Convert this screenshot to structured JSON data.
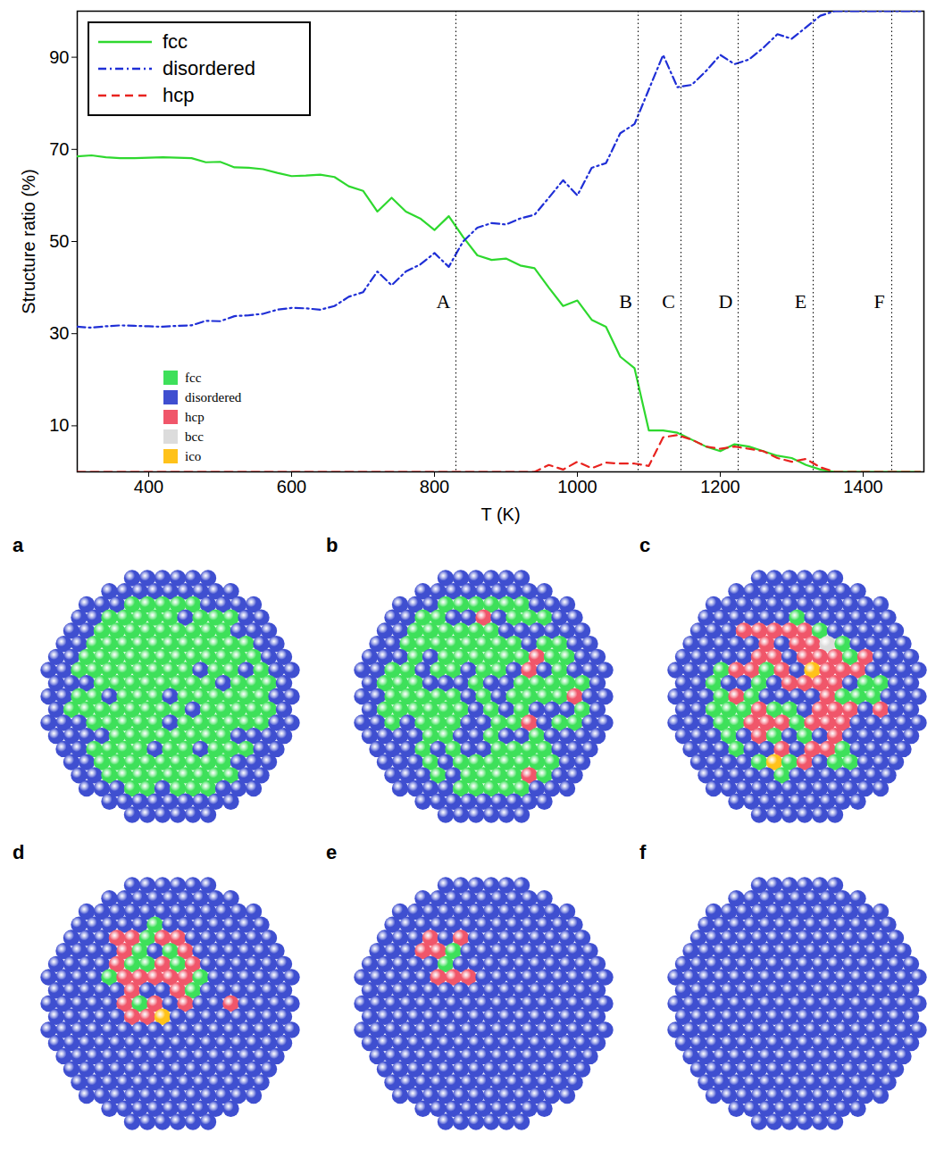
{
  "chart_data": {
    "type": "line",
    "xlabel": "T (K)",
    "ylabel": "Structure ratio (%)",
    "xlim": [
      300,
      1485
    ],
    "ylim": [
      0,
      100
    ],
    "xticks": [
      400,
      600,
      800,
      1000,
      1200,
      1400
    ],
    "yticks": [
      10,
      30,
      50,
      70,
      90
    ],
    "legend": "top-left",
    "x": [
      300,
      320,
      340,
      360,
      380,
      400,
      420,
      440,
      460,
      480,
      500,
      520,
      540,
      560,
      580,
      600,
      620,
      640,
      660,
      680,
      700,
      720,
      740,
      760,
      780,
      800,
      820,
      840,
      860,
      880,
      900,
      920,
      940,
      960,
      980,
      1000,
      1020,
      1040,
      1060,
      1080,
      1100,
      1120,
      1140,
      1160,
      1180,
      1200,
      1220,
      1240,
      1260,
      1280,
      1300,
      1320,
      1340,
      1360,
      1380,
      1400,
      1420,
      1440,
      1460,
      1480
    ],
    "series": [
      {
        "name": "fcc",
        "color": "#2ed82e",
        "line_style": "solid",
        "values": [
          68.5,
          68.7,
          68.3,
          68.1,
          68.1,
          68.2,
          68.3,
          68.2,
          68.1,
          67.2,
          67.3,
          66.1,
          66.0,
          65.7,
          64.9,
          64.2,
          64.3,
          64.5,
          64.0,
          62.0,
          61.0,
          56.5,
          59.5,
          56.5,
          55.0,
          52.5,
          55.5,
          51.0,
          47.0,
          46.0,
          46.3,
          44.8,
          44.2,
          40.0,
          36.0,
          37.2,
          33.0,
          31.5,
          25.0,
          22.5,
          9.0,
          9.0,
          8.5,
          7.0,
          5.5,
          4.5,
          6.0,
          5.5,
          4.5,
          3.5,
          3.0,
          1.5,
          0.5,
          0,
          0,
          0,
          0,
          0,
          0,
          0
        ]
      },
      {
        "name": "disordered",
        "color": "#1f2fd6",
        "line_style": "dashdot",
        "values": [
          31.5,
          31.3,
          31.6,
          31.8,
          31.7,
          31.6,
          31.5,
          31.7,
          31.8,
          32.8,
          32.7,
          33.8,
          34.0,
          34.3,
          35.2,
          35.6,
          35.5,
          35.2,
          36.0,
          38.0,
          39.0,
          43.5,
          40.5,
          43.5,
          45.0,
          47.5,
          44.5,
          50.0,
          53.0,
          54.0,
          53.7,
          55.0,
          55.8,
          59.5,
          63.3,
          60.0,
          66.0,
          67.0,
          73.5,
          75.5,
          83.0,
          90.5,
          83.5,
          84.0,
          87.0,
          90.5,
          88.5,
          89.5,
          92.0,
          95.0,
          94.0,
          96.5,
          99.0,
          100,
          100,
          100,
          100,
          100,
          100,
          100
        ]
      },
      {
        "name": "hcp",
        "color": "#e8231f",
        "line_style": "dashed",
        "values": [
          0,
          0,
          0,
          0,
          0,
          0,
          0,
          0,
          0,
          0,
          0,
          0,
          0,
          0,
          0,
          0,
          0,
          0,
          0,
          0,
          0,
          0,
          0,
          0,
          0,
          0,
          0,
          0,
          0,
          0,
          0,
          0,
          0,
          1.5,
          0.5,
          2.2,
          0.8,
          2.0,
          1.8,
          1.8,
          1.3,
          7.5,
          8.0,
          7.0,
          5.5,
          5.0,
          5.5,
          5.0,
          4.5,
          3.0,
          2.2,
          2.8,
          1.0,
          0,
          0,
          0,
          0,
          0,
          0,
          0
        ]
      }
    ],
    "annotations": [
      {
        "label": "A",
        "x": 830
      },
      {
        "label": "B",
        "x": 1085
      },
      {
        "label": "C",
        "x": 1145
      },
      {
        "label": "D",
        "x": 1225
      },
      {
        "label": "E",
        "x": 1330
      },
      {
        "label": "F",
        "x": 1440
      }
    ]
  },
  "structure_legend": [
    {
      "name": "fcc",
      "color": "#3ee05a"
    },
    {
      "name": "disordered",
      "color": "#3f4fd0"
    },
    {
      "name": "hcp",
      "color": "#f0566a"
    },
    {
      "name": "bcc",
      "color": "#dcdcdc"
    },
    {
      "name": "ico",
      "color": "#ffc21a"
    }
  ],
  "panels": [
    "a",
    "b",
    "c",
    "d",
    "e",
    "f"
  ]
}
